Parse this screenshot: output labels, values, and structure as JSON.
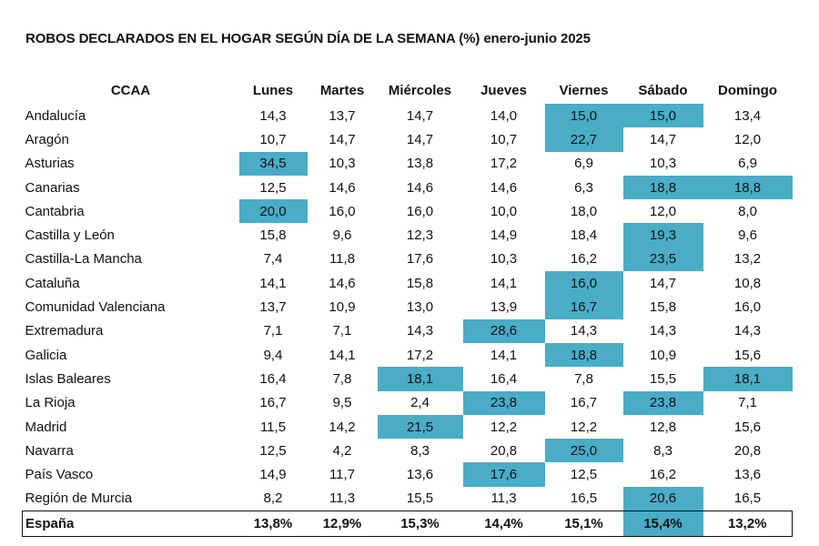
{
  "chart_data": {
    "type": "table",
    "title": "ROBOS DECLARADOS EN EL HOGAR SEGÚN DÍA DE LA SEMANA (%) enero-junio 2025",
    "columns": [
      "CCAA",
      "Lunes",
      "Martes",
      "Miércoles",
      "Jueves",
      "Viernes",
      "Sábado",
      "Domingo"
    ],
    "highlight_color": "#4bacc6",
    "rows": [
      {
        "name": "Andalucía",
        "values": [
          "14,3",
          "13,7",
          "14,7",
          "14,0",
          "15,0",
          "15,0",
          "13,4"
        ],
        "highlight": [
          4,
          5
        ]
      },
      {
        "name": "Aragón",
        "values": [
          "10,7",
          "14,7",
          "14,7",
          "10,7",
          "22,7",
          "14,7",
          "12,0"
        ],
        "highlight": [
          4
        ]
      },
      {
        "name": "Asturias",
        "values": [
          "34,5",
          "10,3",
          "13,8",
          "17,2",
          "6,9",
          "10,3",
          "6,9"
        ],
        "highlight": [
          0
        ]
      },
      {
        "name": "Canarias",
        "values": [
          "12,5",
          "14,6",
          "14,6",
          "14,6",
          "6,3",
          "18,8",
          "18,8"
        ],
        "highlight": [
          5,
          6
        ]
      },
      {
        "name": "Cantabria",
        "values": [
          "20,0",
          "16,0",
          "16,0",
          "10,0",
          "18,0",
          "12,0",
          "8,0"
        ],
        "highlight": [
          0
        ]
      },
      {
        "name": "Castilla y León",
        "values": [
          "15,8",
          "9,6",
          "12,3",
          "14,9",
          "18,4",
          "19,3",
          "9,6"
        ],
        "highlight": [
          5
        ]
      },
      {
        "name": "Castilla-La Mancha",
        "values": [
          "7,4",
          "11,8",
          "17,6",
          "10,3",
          "16,2",
          "23,5",
          "13,2"
        ],
        "highlight": [
          5
        ]
      },
      {
        "name": "Cataluña",
        "values": [
          "14,1",
          "14,6",
          "15,8",
          "14,1",
          "16,0",
          "14,7",
          "10,8"
        ],
        "highlight": [
          4
        ]
      },
      {
        "name": "Comunidad Valenciana",
        "values": [
          "13,7",
          "10,9",
          "13,0",
          "13,9",
          "16,7",
          "15,8",
          "16,0"
        ],
        "highlight": [
          4
        ]
      },
      {
        "name": "Extremadura",
        "values": [
          "7,1",
          "7,1",
          "14,3",
          "28,6",
          "14,3",
          "14,3",
          "14,3"
        ],
        "highlight": [
          3
        ]
      },
      {
        "name": "Galicia",
        "values": [
          "9,4",
          "14,1",
          "17,2",
          "14,1",
          "18,8",
          "10,9",
          "15,6"
        ],
        "highlight": [
          4
        ]
      },
      {
        "name": "Islas Baleares",
        "values": [
          "16,4",
          "7,8",
          "18,1",
          "16,4",
          "7,8",
          "15,5",
          "18,1"
        ],
        "highlight": [
          2,
          6
        ]
      },
      {
        "name": "La Rioja",
        "values": [
          "16,7",
          "9,5",
          "2,4",
          "23,8",
          "16,7",
          "23,8",
          "7,1"
        ],
        "highlight": [
          3,
          5
        ]
      },
      {
        "name": "Madrid",
        "values": [
          "11,5",
          "14,2",
          "21,5",
          "12,2",
          "12,2",
          "12,8",
          "15,6"
        ],
        "highlight": [
          2
        ]
      },
      {
        "name": "Navarra",
        "values": [
          "12,5",
          "4,2",
          "8,3",
          "20,8",
          "25,0",
          "8,3",
          "20,8"
        ],
        "highlight": [
          4
        ]
      },
      {
        "name": "País Vasco",
        "values": [
          "14,9",
          "11,7",
          "13,6",
          "17,6",
          "12,5",
          "16,2",
          "13,6"
        ],
        "highlight": [
          3
        ]
      },
      {
        "name": "Región de Murcia",
        "values": [
          "8,2",
          "11,3",
          "15,5",
          "11,3",
          "16,5",
          "20,6",
          "16,5"
        ],
        "highlight": [
          5
        ]
      }
    ],
    "total": {
      "name": "España",
      "values": [
        "13,8%",
        "12,9%",
        "15,3%",
        "14,4%",
        "15,1%",
        "15,4%",
        "13,2%"
      ],
      "highlight": [
        5
      ]
    }
  }
}
